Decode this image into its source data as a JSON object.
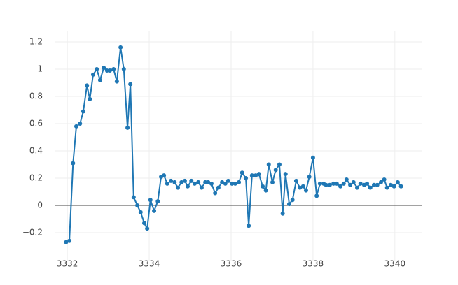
{
  "chart_data": {
    "type": "line",
    "color": "#1f77b4",
    "grid": true,
    "zeroline": true,
    "xlim": [
      3331.69,
      3340.67
    ],
    "ylim": [
      -0.405,
      1.277
    ],
    "xticks": [
      3332,
      3334,
      3336,
      3338,
      3340
    ],
    "yticks": [
      {
        "value": -0.2,
        "label": "−0.2"
      },
      0,
      0.2,
      0.4,
      0.6,
      0.8,
      1,
      1.2
    ],
    "x": [
      3331.97,
      3332.05,
      3332.14,
      3332.22,
      3332.31,
      3332.39,
      3332.48,
      3332.55,
      3332.63,
      3332.72,
      3332.8,
      3332.89,
      3332.97,
      3333.04,
      3333.13,
      3333.21,
      3333.3,
      3333.38,
      3333.47,
      3333.54,
      3333.62,
      3333.71,
      3333.79,
      3333.88,
      3333.95,
      3334.03,
      3334.12,
      3334.21,
      3334.29,
      3334.36,
      3334.44,
      3334.53,
      3334.62,
      3334.7,
      3334.79,
      3334.87,
      3334.94,
      3335.03,
      3335.11,
      3335.2,
      3335.28,
      3335.37,
      3335.44,
      3335.52,
      3335.61,
      3335.69,
      3335.78,
      3335.86,
      3335.93,
      3336.02,
      3336.1,
      3336.19,
      3336.27,
      3336.36,
      3336.43,
      3336.51,
      3336.6,
      3336.68,
      3336.77,
      3336.85,
      3336.92,
      3337.01,
      3337.09,
      3337.18,
      3337.26,
      3337.33,
      3337.42,
      3337.5,
      3337.59,
      3337.68,
      3337.76,
      3337.83,
      3337.91,
      3338.0,
      3338.09,
      3338.17,
      3338.26,
      3338.32,
      3338.41,
      3338.5,
      3338.58,
      3338.67,
      3338.75,
      3338.82,
      3338.91,
      3338.99,
      3339.08,
      3339.16,
      3339.25,
      3339.32,
      3339.4,
      3339.49,
      3339.57,
      3339.66,
      3339.74,
      3339.81,
      3339.9,
      3339.98,
      3340.07,
      3340.15
    ],
    "values": [
      -0.27,
      -0.26,
      0.31,
      0.58,
      0.6,
      0.69,
      0.88,
      0.78,
      0.96,
      1.0,
      0.92,
      1.01,
      0.99,
      0.99,
      1.0,
      0.91,
      1.16,
      1.0,
      0.57,
      0.89,
      0.06,
      0.0,
      -0.05,
      -0.13,
      -0.17,
      0.04,
      -0.04,
      0.03,
      0.21,
      0.22,
      0.16,
      0.18,
      0.17,
      0.13,
      0.17,
      0.18,
      0.14,
      0.18,
      0.16,
      0.17,
      0.13,
      0.17,
      0.17,
      0.16,
      0.09,
      0.13,
      0.17,
      0.16,
      0.18,
      0.16,
      0.16,
      0.17,
      0.24,
      0.2,
      -0.15,
      0.22,
      0.22,
      0.23,
      0.14,
      0.11,
      0.3,
      0.17,
      0.26,
      0.3,
      -0.06,
      0.23,
      0.01,
      0.04,
      0.18,
      0.13,
      0.14,
      0.11,
      0.21,
      0.35,
      0.07,
      0.16,
      0.16,
      0.15,
      0.15,
      0.16,
      0.16,
      0.14,
      0.16,
      0.19,
      0.15,
      0.17,
      0.13,
      0.16,
      0.15,
      0.16,
      0.13,
      0.15,
      0.15,
      0.17,
      0.19,
      0.13,
      0.15,
      0.14,
      0.17,
      0.14
    ]
  }
}
